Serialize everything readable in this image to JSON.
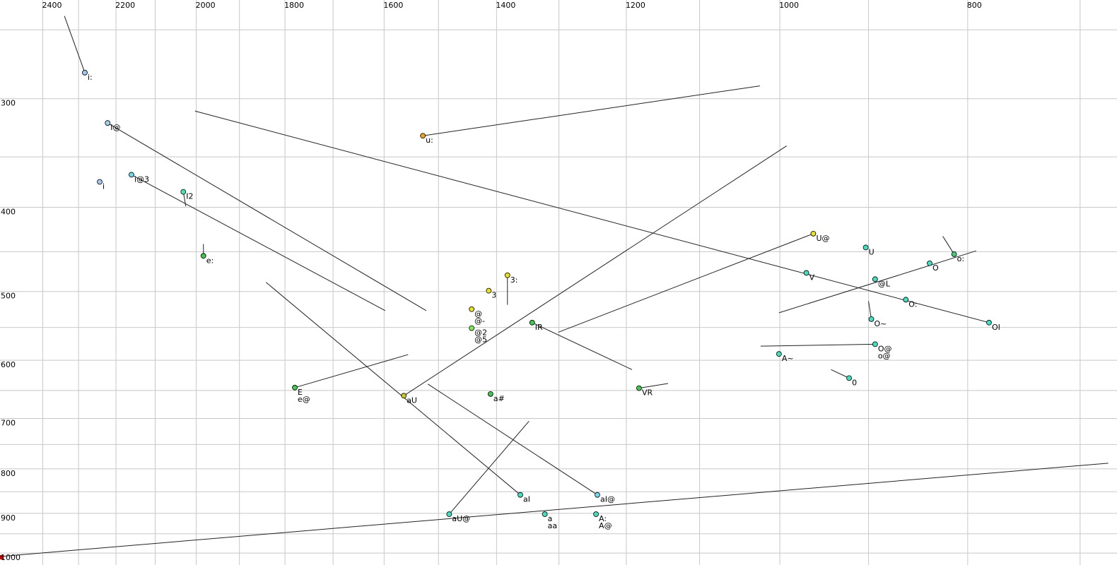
{
  "chart_data": {
    "type": "scatter",
    "log": true,
    "xlim": [
      2525,
      670
    ],
    "ylim": [
      231,
      1032
    ],
    "xticks": [
      2400,
      2200,
      2000,
      1800,
      1600,
      1400,
      1200,
      1000,
      800
    ],
    "yticks": [
      300,
      400,
      500,
      600,
      700,
      800,
      900,
      1000
    ],
    "xgrid": [
      700,
      800,
      900,
      1000,
      1100,
      1200,
      1300,
      1400,
      1500,
      1600,
      1700,
      1800,
      1900,
      2000,
      2100,
      2200,
      2300,
      2400
    ],
    "ygrid": [
      250,
      300,
      350,
      400,
      450,
      500,
      550,
      600,
      650,
      700,
      750,
      800,
      850,
      900,
      950,
      1000
    ],
    "labels": [
      [
        "i:"
      ],
      [
        "I@"
      ],
      [
        "i"
      ],
      [
        "i@3"
      ],
      [
        "I2"
      ],
      [
        "e:"
      ],
      [
        "u:"
      ],
      [
        "3:"
      ],
      [
        "3"
      ],
      [
        "@",
        "@-"
      ],
      [
        "@2",
        "@5"
      ],
      [
        "IR"
      ],
      [
        "a#"
      ],
      [
        "E",
        "e@"
      ],
      [
        "aU"
      ],
      [
        "VR"
      ],
      [
        "U@"
      ],
      [
        "U"
      ],
      [
        "V"
      ],
      [
        "O"
      ],
      [
        "o:"
      ],
      [
        "@L"
      ],
      [
        "O:"
      ],
      [
        "OI"
      ],
      [
        "O~"
      ],
      [
        "O@",
        "o@"
      ],
      [
        "A~"
      ],
      [
        "0"
      ],
      [
        "aI"
      ],
      [
        "aI@"
      ],
      [
        "aU@"
      ],
      [
        "a",
        "aa"
      ],
      [
        "A:",
        "A@"
      ]
    ],
    "x": [
      2283,
      2222,
      2243,
      2160,
      2031,
      1983,
      1528,
      1382,
      1413,
      1442,
      1442,
      1342,
      1410,
      1779,
      1563,
      1182,
      961,
      903,
      969,
      837,
      813,
      893,
      861,
      780,
      897,
      893,
      1001,
      921,
      1361,
      1242,
      1481,
      1322,
      1244
    ],
    "y": [
      280,
      320,
      374,
      367,
      384,
      455,
      331,
      479,
      499,
      524,
      551,
      543,
      656,
      645,
      659,
      646,
      429,
      445,
      476,
      464,
      453,
      484,
      511,
      543,
      538,
      575,
      590,
      629,
      857,
      857,
      902,
      902,
      902
    ],
    "colors": [
      "#a0c8f0",
      "#a0d0f0",
      "#a0c8f0",
      "#70d8e8",
      "#50e0b0",
      "#40c850",
      "#f0a020",
      "#e8e020",
      "#e8e020",
      "#e8e020",
      "#80e850",
      "#40c850",
      "#40c850",
      "#40c850",
      "#c8c820",
      "#40c850",
      "#e8e020",
      "#40e0c0",
      "#40e0c0",
      "#40e0c0",
      "#40d080",
      "#40e0c0",
      "#40e0c0",
      "#40e0c0",
      "#40e0c0",
      "#40e0c0",
      "#40e0c0",
      "#40e0c0",
      "#40e0c0",
      "#70d8e8",
      "#40e0c0",
      "#40e0c0",
      "#40e0c0"
    ],
    "segments": [
      {
        "x": [
          2339,
          2283
        ],
        "y": [
          241,
          280
        ]
      },
      {
        "x": [
          2222,
          1522
        ],
        "y": [
          320,
          526
        ]
      },
      {
        "x": [
          2160,
          1598
        ],
        "y": [
          367,
          526
        ]
      },
      {
        "x": [
          2031,
          2025
        ],
        "y": [
          384,
          399
        ]
      },
      {
        "x": [
          1983,
          1983
        ],
        "y": [
          441,
          455
        ]
      },
      {
        "x": [
          1528,
          1024
        ],
        "y": [
          331,
          290
        ]
      },
      {
        "x": [
          2003,
          780
        ],
        "y": [
          310,
          543
        ]
      },
      {
        "x": [
          1563,
          992
        ],
        "y": [
          659,
          340
        ]
      },
      {
        "x": [
          961,
          1301
        ],
        "y": [
          429,
          557
        ]
      },
      {
        "x": [
          1382,
          1382
        ],
        "y": [
          479,
          518
        ]
      },
      {
        "x": [
          1342,
          1192
        ],
        "y": [
          543,
          615
        ]
      },
      {
        "x": [
          1779,
          1555
        ],
        "y": [
          645,
          591
        ]
      },
      {
        "x": [
          1841,
          1361
        ],
        "y": [
          488,
          857
        ]
      },
      {
        "x": [
          1519,
          1242
        ],
        "y": [
          639,
          857
        ]
      },
      {
        "x": [
          1481,
          1347
        ],
        "y": [
          902,
          705
        ]
      },
      {
        "x": [
          2525,
          677
        ],
        "y": [
          1009,
          788
        ]
      },
      {
        "x": [
          1001,
          792
        ],
        "y": [
          529,
          449
        ]
      },
      {
        "x": [
          813,
          824
        ],
        "y": [
          453,
          432
        ]
      },
      {
        "x": [
          897,
          900
        ],
        "y": [
          538,
          513
        ]
      },
      {
        "x": [
          1023,
          893
        ],
        "y": [
          578,
          575
        ]
      },
      {
        "x": [
          941,
          921
        ],
        "y": [
          615,
          629
        ]
      },
      {
        "x": [
          1182,
          1142
        ],
        "y": [
          646,
          638
        ]
      }
    ]
  }
}
